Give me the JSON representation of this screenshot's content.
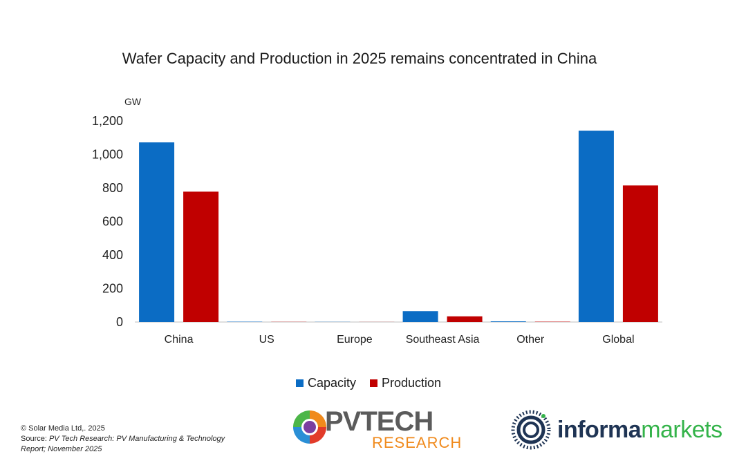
{
  "chart_data": {
    "type": "bar",
    "title": "Wafer Capacity and Production in 2025 remains concentrated in China",
    "ylabel": "GW",
    "xlabel": "",
    "ylim": [
      0,
      1200
    ],
    "yticks": [
      0,
      200,
      400,
      600,
      800,
      1000,
      1200
    ],
    "ytick_labels": [
      "0",
      "200",
      "400",
      "600",
      "800",
      "1,000",
      "1,200"
    ],
    "categories": [
      "China",
      "US",
      "Europe",
      "Southeast Asia",
      "Other",
      "Global"
    ],
    "series": [
      {
        "name": "Capacity",
        "color": "#0b6cc4",
        "values": [
          1072,
          2,
          1,
          65,
          4,
          1142
        ]
      },
      {
        "name": "Production",
        "color": "#c00000",
        "values": [
          778,
          1,
          0.5,
          34,
          2,
          815
        ]
      }
    ],
    "grid": false,
    "legend_position": "bottom"
  },
  "footer": {
    "copyright": "© Solar Media Ltd,. 2025",
    "source_label": "Source: ",
    "source_text": "PV Tech Research: PV Manufacturing & Technology",
    "source_text_2": "Report; November 2025"
  },
  "logos": {
    "pvtech_main": "PVTECH",
    "pvtech_sub": "RESEARCH",
    "informa_1": "informa",
    "informa_2": "markets"
  }
}
